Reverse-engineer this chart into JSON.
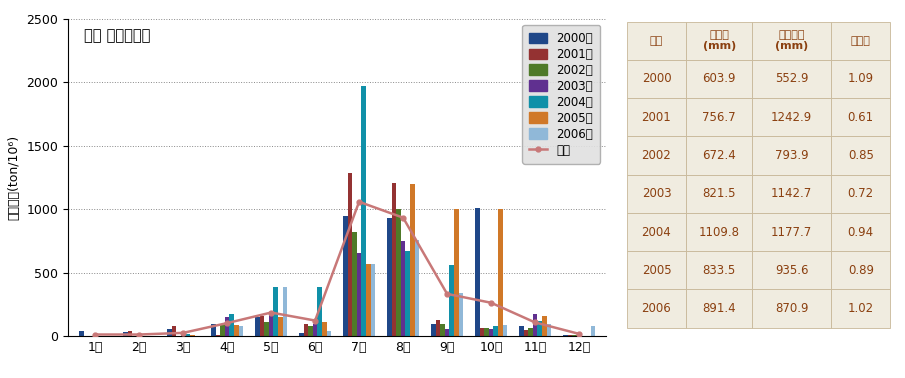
{
  "title": "관측 월유출용적",
  "ylabel": "유출용적(ton/10⁶)",
  "months": [
    "1월",
    "2월",
    "3월",
    "4월",
    "5월",
    "6월",
    "7월",
    "8월",
    "9월",
    "10월",
    "11월",
    "12월"
  ],
  "years": [
    "2000년",
    "2001년",
    "2002년",
    "2003년",
    "2004년",
    "2005년",
    "2006년"
  ],
  "colors": [
    "#1f4788",
    "#943232",
    "#4f7a28",
    "#603090",
    "#1090a8",
    "#d07828",
    "#90b8d8"
  ],
  "bar_data": {
    "2000년": [
      40,
      35,
      60,
      95,
      155,
      30,
      950,
      930,
      100,
      1010,
      80,
      10
    ],
    "2001년": [
      5,
      40,
      80,
      10,
      160,
      100,
      1290,
      1210,
      130,
      70,
      50,
      10
    ],
    "2002년": [
      5,
      5,
      5,
      100,
      110,
      80,
      820,
      1000,
      100,
      70,
      70,
      10
    ],
    "2003년": [
      5,
      5,
      10,
      150,
      165,
      100,
      660,
      750,
      60,
      55,
      175,
      5
    ],
    "2004년": [
      5,
      5,
      20,
      180,
      390,
      390,
      1970,
      670,
      560,
      80,
      120,
      5
    ],
    "2005년": [
      5,
      5,
      10,
      90,
      150,
      110,
      570,
      1200,
      1005,
      1000,
      160,
      5
    ],
    "2006년": [
      5,
      5,
      5,
      80,
      390,
      40,
      570,
      760,
      340,
      90,
      100,
      80
    ]
  },
  "mean_line": [
    15,
    15,
    28,
    105,
    188,
    125,
    1060,
    935,
    335,
    265,
    110,
    20
  ],
  "line_color": "#c87878",
  "ylim": [
    0,
    2500
  ],
  "yticks": [
    0,
    500,
    1000,
    1500,
    2000,
    2500
  ],
  "table_data": {
    "headers": [
      "년도",
      "유출고\n(mm)",
      "강우깊이\n(mm)",
      "유출률"
    ],
    "rows": [
      [
        "2000",
        "603.9",
        "552.9",
        "1.09"
      ],
      [
        "2001",
        "756.7",
        "1242.9",
        "0.61"
      ],
      [
        "2002",
        "672.4",
        "793.9",
        "0.85"
      ],
      [
        "2003",
        "821.5",
        "1142.7",
        "0.72"
      ],
      [
        "2004",
        "1109.8",
        "1177.7",
        "0.94"
      ],
      [
        "2005",
        "833.5",
        "935.6",
        "0.89"
      ],
      [
        "2006",
        "891.4",
        "870.9",
        "1.02"
      ]
    ]
  },
  "table_bg": "#f0ece0",
  "table_text_color": "#8b4010",
  "table_border_color": "#c8b898"
}
